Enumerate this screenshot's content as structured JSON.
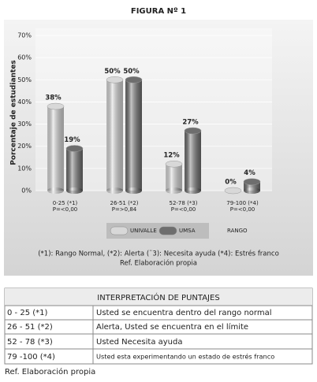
{
  "chart_data": {
    "type": "bar",
    "title": "FIGURA Nº 1",
    "ylabel": "Porcentaje de estudiantes",
    "xlabel": "RANGO",
    "categories": [
      "0-25 (*1)",
      "26-51 (*2)",
      "52-78 (*3)",
      "79-100 (*4)"
    ],
    "category_sublabels": [
      "P=<0,00",
      "P=>0,84",
      "P=<0,00",
      "P=<0,00"
    ],
    "series": [
      {
        "name": "UNIVALLE",
        "color": "#d8d8d8",
        "values": [
          38,
          50,
          12,
          0
        ],
        "value_labels": [
          "38%",
          "50%",
          "12%",
          "0%"
        ]
      },
      {
        "name": "UMSA",
        "color": "#6e6e6e",
        "values": [
          19,
          50,
          27,
          4
        ],
        "value_labels": [
          "19%",
          "50%",
          "27%",
          "4%"
        ]
      }
    ],
    "ylim": [
      0,
      70
    ],
    "yticks": [
      {
        "value": 0,
        "label": "0%"
      },
      {
        "value": 10,
        "label": "10%"
      },
      {
        "value": 20,
        "label": "20%"
      },
      {
        "value": 30,
        "label": "30%"
      },
      {
        "value": 40,
        "label": "40%"
      },
      {
        "value": 50,
        "label": "50%"
      },
      {
        "value": 60,
        "label": "60%"
      },
      {
        "value": 70,
        "label": "70%"
      }
    ],
    "notes": [
      "(*1): Rango Normal, (*2): Alerta (¨3): Necesita ayuda (*4): Estrés franco",
      "Ref. Elaboración propia"
    ]
  },
  "table": {
    "title": "INTERPRETACIÓN DE PUNTAJES",
    "rows": [
      [
        "0 - 25 (*1)",
        "Usted se encuentra dentro del rango normal"
      ],
      [
        "26 - 51 (*2)",
        "Alerta, Usted se encuentra en el límite"
      ],
      [
        "52 - 78 (*3)",
        "Usted Necesita ayuda"
      ],
      [
        "79 -100 (*4)",
        "Usted esta experimentando un estado de estrés franco"
      ]
    ],
    "source": "Ref. Elaboración propia"
  }
}
